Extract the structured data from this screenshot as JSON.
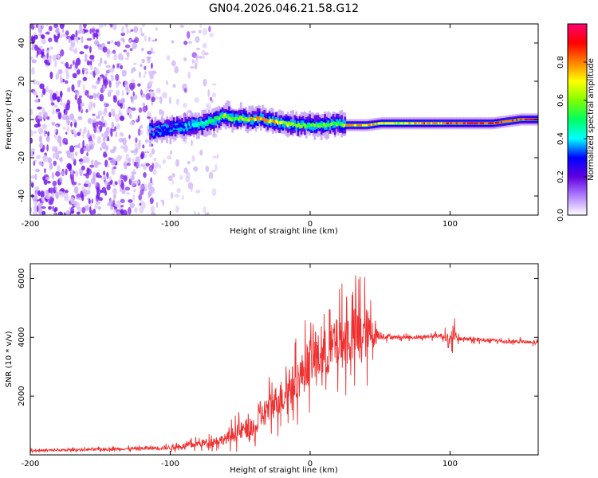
{
  "title": "GN04.2026.046.21.58.G12",
  "chart_data": [
    {
      "type": "heatmap",
      "title": "GN04.2026.046.21.58.G12",
      "xlabel": "Height of straight line (km)",
      "ylabel": "Frequency (Hz)",
      "xlim": [
        -200,
        163
      ],
      "ylim": [
        -50,
        50
      ],
      "xticks": [
        -200,
        -100,
        0,
        100
      ],
      "xtick_labels": [
        "-200",
        "-100",
        "0",
        "100"
      ],
      "yticks": [
        -40,
        -20,
        0,
        20,
        40
      ],
      "ytick_labels": [
        "-40",
        "-20",
        "0",
        "20",
        "40"
      ],
      "ridge_x": [
        -115,
        -105,
        -95,
        -85,
        -75,
        -65,
        -60,
        -55,
        -50,
        -45,
        -40,
        -35,
        -30,
        -25,
        -20,
        -10,
        0,
        10,
        20,
        25,
        30,
        40,
        50,
        60,
        70,
        80,
        90,
        100,
        110,
        120,
        130,
        140,
        150,
        163
      ],
      "ridge_freq": [
        -6,
        -5,
        -4,
        -3,
        -2,
        1,
        2,
        0,
        1,
        0,
        0,
        1,
        -1,
        -1,
        -2,
        -3,
        -3,
        -3,
        -2,
        -3,
        -3,
        -3,
        -2,
        -2,
        -2,
        -2,
        -2,
        -2,
        -2,
        -2,
        -2,
        -1,
        0,
        0
      ],
      "ridge_amplitude": [
        0.2,
        0.25,
        0.3,
        0.4,
        0.45,
        0.55,
        0.6,
        0.55,
        0.6,
        0.65,
        0.7,
        0.75,
        0.7,
        0.7,
        0.65,
        0.6,
        0.55,
        0.6,
        0.5,
        0.7,
        0.8,
        0.75,
        0.7,
        0.65,
        0.7,
        0.8,
        0.75,
        0.85,
        0.9,
        0.9,
        0.85,
        0.8,
        0.85,
        0.95
      ],
      "noise_region_km": [
        -200,
        -75
      ],
      "colorbar": {
        "label": "Normalized spectral amplitude",
        "range": [
          0.0,
          1.0
        ],
        "ticks": [
          0.0,
          0.2,
          0.4,
          0.6,
          0.8
        ],
        "tick_labels": [
          "0.0",
          "0.2",
          "0.4",
          "0.6",
          "0.8"
        ],
        "colors": [
          "#ffffff",
          "#b080ff",
          "#6000e0",
          "#0000ff",
          "#00ffff",
          "#00ff60",
          "#80ff00",
          "#ffff00",
          "#ff8000",
          "#ff0000",
          "#ff0070"
        ]
      }
    },
    {
      "type": "line",
      "xlabel": "Height of straight line (km)",
      "ylabel": "SNR (10 * v/v)",
      "xlim": [
        -200,
        163
      ],
      "ylim": [
        0,
        6500
      ],
      "xticks": [
        -200,
        -100,
        0,
        100
      ],
      "xtick_labels": [
        "-200",
        "-100",
        "0",
        "100"
      ],
      "yticks": [
        2000,
        4000,
        6000
      ],
      "ytick_labels": [
        "2000",
        "4000",
        "6000"
      ],
      "color": "#f03030",
      "series": [
        {
          "name": "SNR",
          "x": [
            -200,
            -180,
            -160,
            -140,
            -120,
            -100,
            -90,
            -80,
            -70,
            -60,
            -55,
            -50,
            -45,
            -40,
            -35,
            -30,
            -25,
            -20,
            -15,
            -10,
            -5,
            0,
            5,
            10,
            15,
            20,
            25,
            30,
            35,
            40,
            45,
            50,
            60,
            70,
            80,
            90,
            95,
            98,
            100,
            102,
            105,
            110,
            120,
            130,
            140,
            150,
            163
          ],
          "values": [
            150,
            160,
            180,
            200,
            220,
            250,
            300,
            380,
            450,
            550,
            700,
            800,
            900,
            750,
            1300,
            1600,
            1800,
            2000,
            2300,
            2500,
            2800,
            3200,
            3300,
            3400,
            3600,
            3800,
            3900,
            4000,
            4100,
            4150,
            4100,
            4050,
            4000,
            4000,
            4000,
            4050,
            4050,
            4000,
            3600,
            4200,
            3950,
            3950,
            3900,
            3900,
            3850,
            3850,
            3800
          ],
          "noise_amplitude": [
            60,
            60,
            70,
            80,
            90,
            120,
            150,
            200,
            250,
            300,
            450,
            500,
            550,
            600,
            700,
            800,
            900,
            1000,
            1100,
            1100,
            1200,
            1300,
            1300,
            1400,
            1400,
            1500,
            1500,
            1600,
            1700,
            1500,
            800,
            200,
            100,
            100,
            100,
            120,
            150,
            300,
            800,
            600,
            150,
            100,
            100,
            100,
            100,
            100,
            100
          ]
        }
      ]
    }
  ]
}
